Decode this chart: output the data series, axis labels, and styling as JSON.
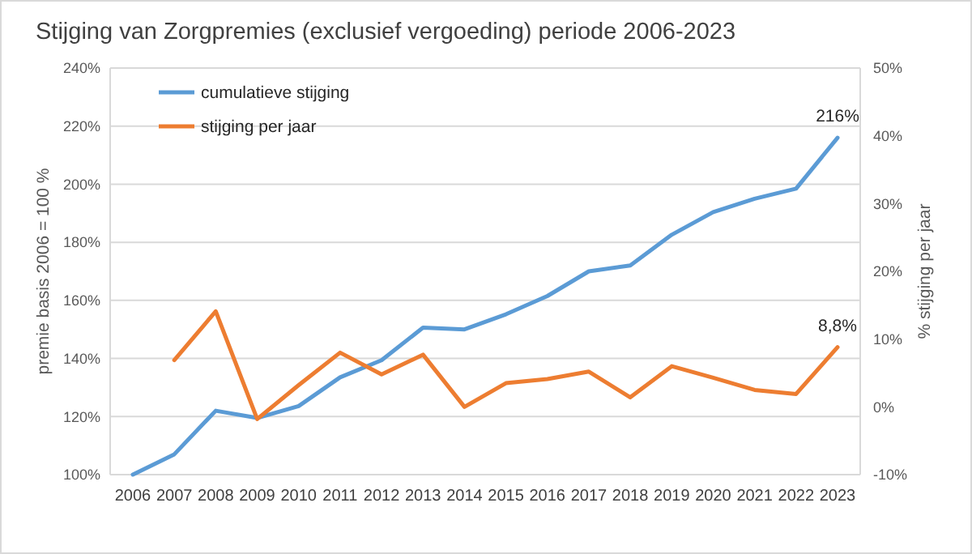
{
  "chart_data": {
    "type": "line",
    "title": "Stijging van Zorgpremies (exclusief vergoeding) periode 2006-2023",
    "categories": [
      "2006",
      "2007",
      "2008",
      "2009",
      "2010",
      "2011",
      "2012",
      "2013",
      "2014",
      "2015",
      "2016",
      "2017",
      "2018",
      "2019",
      "2020",
      "2021",
      "2022",
      "2023"
    ],
    "series": [
      {
        "name": "cumulatieve stijging",
        "color": "#5b9bd5",
        "values": [
          100,
          107,
          122,
          119.5,
          123.6,
          133.5,
          139.4,
          150.6,
          150,
          155.2,
          161.5,
          170,
          172,
          182.6,
          190.4,
          195,
          198.5,
          216
        ]
      },
      {
        "name": "stijging per jaar",
        "color": "#ed7d31",
        "axis": "y2",
        "values": [
          null,
          6.9,
          14.1,
          -1.8,
          3.2,
          8.0,
          4.8,
          7.7,
          0.0,
          3.5,
          4.1,
          5.2,
          1.4,
          6.0,
          4.3,
          2.5,
          1.9,
          8.8
        ]
      }
    ],
    "ylabel": "premie basis 2006 = 100 %",
    "y2label": "% stijging per jaar",
    "ylim": [
      100,
      240
    ],
    "yticks": [
      {
        "value": 100,
        "label": "100%"
      },
      {
        "value": 120,
        "label": "120%"
      },
      {
        "value": 140,
        "label": "140%"
      },
      {
        "value": 160,
        "label": "160%"
      },
      {
        "value": 180,
        "label": "180%"
      },
      {
        "value": 200,
        "label": "200%"
      },
      {
        "value": 220,
        "label": "220%"
      },
      {
        "value": 240,
        "label": "240%"
      }
    ],
    "y2lim": [
      -10,
      50
    ],
    "y2ticks": [
      {
        "value": -10,
        "label": "-10%"
      },
      {
        "value": 0,
        "label": "0%"
      },
      {
        "value": 10,
        "label": "10%"
      },
      {
        "value": 20,
        "label": "20%"
      },
      {
        "value": 30,
        "label": "30%"
      },
      {
        "value": 40,
        "label": "40%"
      },
      {
        "value": 50,
        "label": "50%"
      }
    ],
    "annotations": [
      {
        "text": "216%",
        "x": "2023",
        "y": 216
      },
      "8,8%"
    ],
    "grid": "y",
    "legend": "top left",
    "marker": "none",
    "line_style": "solid"
  }
}
